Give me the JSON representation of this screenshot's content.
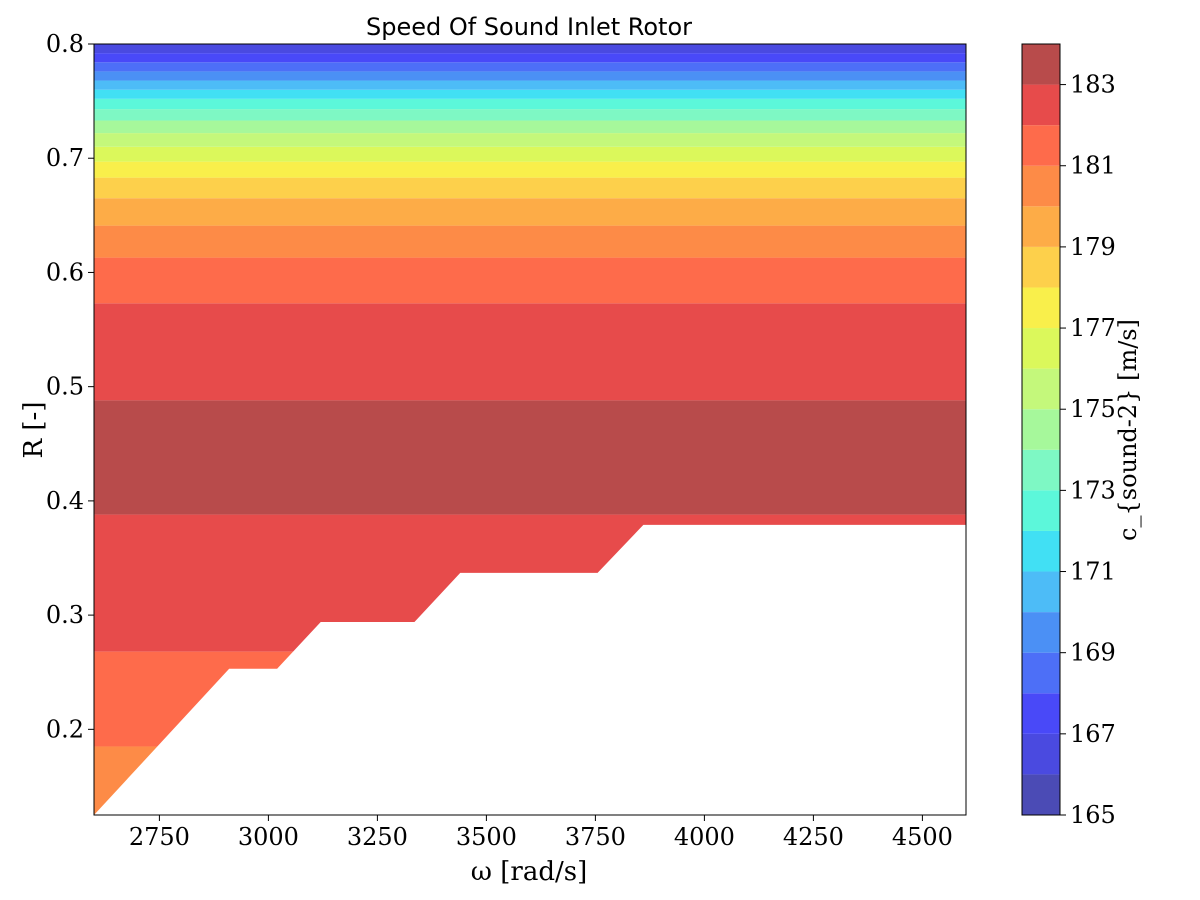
{
  "chart_data": {
    "type": "heatmap",
    "subtype": "filled-contour",
    "title": "Speed Of Sound Inlet Rotor",
    "xlabel": "ω [rad/s]",
    "ylabel": "R [-]",
    "xlim": [
      2600,
      4600
    ],
    "ylim": [
      0.125,
      0.8
    ],
    "x_ticks": [
      2750,
      3000,
      3250,
      3500,
      3750,
      4000,
      4250,
      4500
    ],
    "y_ticks": [
      0.2,
      0.3,
      0.4,
      0.5,
      0.6,
      0.7,
      0.8
    ],
    "grid": false,
    "colorbar": {
      "label": "c_{sound-2} [m/s]",
      "range": [
        165,
        184
      ],
      "ticks": [
        165,
        167,
        169,
        171,
        173,
        175,
        177,
        179,
        181,
        183
      ],
      "levels": [
        165,
        166,
        167,
        168,
        169,
        170,
        171,
        172,
        173,
        174,
        175,
        176,
        177,
        178,
        179,
        180,
        181,
        182,
        183,
        184
      ],
      "colors": [
        "#4b4bb5",
        "#4a4ae0",
        "#4949f8",
        "#4d6ff7",
        "#4b90f5",
        "#4dbcf7",
        "#41e0f4",
        "#5cf7da",
        "#7ef8c4",
        "#a6f89b",
        "#c4f87b",
        "#dbf85b",
        "#f9ef4b",
        "#fdd04b",
        "#fdac47",
        "#fd8b47",
        "#fe6b4b",
        "#e74b4b",
        "#b84b4b"
      ]
    },
    "bands": [
      {
        "value_range": [
          183,
          184
        ],
        "R_range": [
          0.388,
          0.488
        ]
      },
      {
        "value_range": [
          182,
          183
        ],
        "R_range": [
          0.573,
          0.488
        ]
      },
      {
        "value_range": [
          182,
          183
        ],
        "R_range": [
          0.268,
          0.388
        ]
      },
      {
        "value_range": [
          181,
          182
        ],
        "R_range": [
          0.573,
          0.613
        ]
      },
      {
        "value_range": [
          181,
          182
        ],
        "R_range": [
          0.185,
          0.268
        ]
      },
      {
        "value_range": [
          180,
          181
        ],
        "R_range": [
          0.613,
          0.641
        ]
      },
      {
        "value_range": [
          180,
          181
        ],
        "R_range": [
          0.125,
          0.185
        ]
      },
      {
        "value_range": [
          179,
          180
        ],
        "R_range": [
          0.641,
          0.665
        ]
      },
      {
        "value_range": [
          178,
          179
        ],
        "R_range": [
          0.665,
          0.683
        ]
      },
      {
        "value_range": [
          177,
          178
        ],
        "R_range": [
          0.683,
          0.697
        ]
      },
      {
        "value_range": [
          176,
          177
        ],
        "R_range": [
          0.697,
          0.71
        ]
      },
      {
        "value_range": [
          175,
          176
        ],
        "R_range": [
          0.71,
          0.722
        ]
      },
      {
        "value_range": [
          174,
          175
        ],
        "R_range": [
          0.722,
          0.733
        ]
      },
      {
        "value_range": [
          173,
          174
        ],
        "R_range": [
          0.733,
          0.743
        ]
      },
      {
        "value_range": [
          172,
          173
        ],
        "R_range": [
          0.743,
          0.752
        ]
      },
      {
        "value_range": [
          171,
          172
        ],
        "R_range": [
          0.752,
          0.76
        ]
      },
      {
        "value_range": [
          170,
          171
        ],
        "R_range": [
          0.76,
          0.768
        ]
      },
      {
        "value_range": [
          169,
          170
        ],
        "R_range": [
          0.768,
          0.776
        ]
      },
      {
        "value_range": [
          168,
          169
        ],
        "R_range": [
          0.776,
          0.784
        ]
      },
      {
        "value_range": [
          167,
          168
        ],
        "R_range": [
          0.784,
          0.792
        ]
      },
      {
        "value_range": [
          166,
          167
        ],
        "R_range": [
          0.792,
          0.8
        ]
      }
    ],
    "valid_region_lower_boundary": [
      [
        2600,
        0.125
      ],
      [
        2910,
        0.253
      ],
      [
        3020,
        0.253
      ],
      [
        3120,
        0.294
      ],
      [
        3335,
        0.294
      ],
      [
        3440,
        0.337
      ],
      [
        3755,
        0.337
      ],
      [
        3860,
        0.379
      ],
      [
        4600,
        0.379
      ]
    ]
  }
}
